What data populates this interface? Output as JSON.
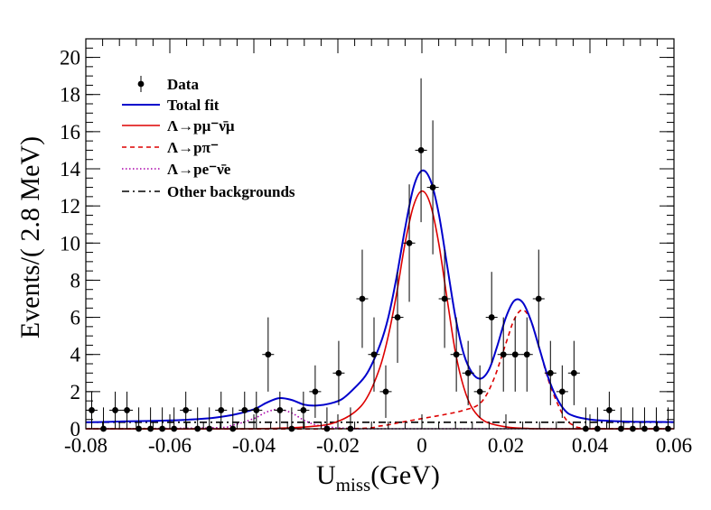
{
  "chart_data": {
    "type": "scatter",
    "title": "",
    "xlabel": "U",
    "xlabel_subscript": "miss",
    "xlabel_unit": "(GeV)",
    "ylabel": "Events/( 2.8 MeV)",
    "xlim": [
      -0.08,
      0.06
    ],
    "ylim": [
      0,
      21
    ],
    "grid": false,
    "legend_placement": "top-left",
    "x_ticks": [
      -0.08,
      -0.06,
      -0.04,
      -0.02,
      0,
      0.02,
      0.04,
      0.06
    ],
    "x_tick_labels": [
      "-0.08",
      "-0.06",
      "-0.04",
      "-0.02",
      "0",
      "0.02",
      "0.04",
      "0.06"
    ],
    "y_ticks": [
      0,
      2,
      4,
      6,
      8,
      10,
      12,
      14,
      16,
      18,
      20
    ],
    "y_tick_labels": [
      "0",
      "2",
      "4",
      "6",
      "8",
      "10",
      "12",
      "14",
      "16",
      "18",
      "20"
    ],
    "x_bin_width": 0.0028,
    "colors": {
      "data": "#000000",
      "total_fit": "#0000cc",
      "signal": "#dd0000",
      "ppi": "#dd0000",
      "pe": "#aa00aa",
      "other": "#000000"
    },
    "legend": [
      {
        "key": "data",
        "text": "Data"
      },
      {
        "key": "total",
        "text": "Total fit"
      },
      {
        "key": "signal",
        "text": "Λ→pμ⁻ν̄μ"
      },
      {
        "key": "ppi",
        "text": "Λ→pπ⁻"
      },
      {
        "key": "pe",
        "text": "Λ→pe⁻ν̄e"
      },
      {
        "key": "other",
        "text": "Other backgrounds"
      }
    ],
    "series": [
      {
        "name": "Data",
        "style": "points_with_errors",
        "x": [
          -0.0786,
          -0.0758,
          -0.073,
          -0.0702,
          -0.0674,
          -0.0646,
          -0.0618,
          -0.059,
          -0.0562,
          -0.0534,
          -0.0506,
          -0.0478,
          -0.045,
          -0.0422,
          -0.0394,
          -0.0366,
          -0.0338,
          -0.031,
          -0.0282,
          -0.0254,
          -0.0226,
          -0.0198,
          -0.017,
          -0.0142,
          -0.0114,
          -0.0086,
          -0.0058,
          -0.003,
          -0.0002,
          0.0026,
          0.0054,
          0.0082,
          0.011,
          0.0138,
          0.0166,
          0.0194,
          0.0222,
          0.025,
          0.0278,
          0.0306,
          0.0334,
          0.0362,
          0.039,
          0.0418,
          0.0446,
          0.0474,
          0.0502,
          0.053,
          0.0558,
          0.0586
        ],
        "y": [
          1,
          0,
          1,
          1,
          0,
          0,
          0,
          0,
          1,
          0,
          0,
          1,
          0,
          1,
          1,
          4,
          1,
          0,
          1,
          2,
          0,
          3,
          0,
          7,
          4,
          2,
          6,
          10,
          15,
          13,
          7,
          4,
          3,
          2,
          6,
          4,
          4,
          4,
          7,
          3,
          2,
          3,
          0,
          0,
          1,
          0,
          0,
          0,
          0,
          0
        ]
      },
      {
        "name": "Total fit",
        "style": "line",
        "x": [
          -0.08,
          -0.075,
          -0.07,
          -0.065,
          -0.06,
          -0.055,
          -0.05,
          -0.045,
          -0.04,
          -0.037,
          -0.034,
          -0.031,
          -0.028,
          -0.025,
          -0.022,
          -0.019,
          -0.016,
          -0.013,
          -0.01,
          -0.008,
          -0.006,
          -0.004,
          -0.002,
          0.0,
          0.002,
          0.004,
          0.006,
          0.008,
          0.01,
          0.012,
          0.014,
          0.016,
          0.018,
          0.02,
          0.022,
          0.024,
          0.026,
          0.028,
          0.03,
          0.032,
          0.034,
          0.036,
          0.04,
          0.045,
          0.05,
          0.055,
          0.06
        ],
        "y": [
          0.35,
          0.37,
          0.4,
          0.42,
          0.45,
          0.5,
          0.58,
          0.75,
          1.05,
          1.4,
          1.65,
          1.55,
          1.3,
          1.25,
          1.35,
          1.6,
          2.2,
          3.0,
          4.5,
          6.0,
          8.2,
          10.8,
          13.0,
          13.9,
          13.4,
          11.6,
          8.8,
          6.0,
          4.0,
          3.0,
          2.7,
          3.2,
          4.5,
          6.0,
          6.9,
          6.8,
          5.8,
          4.3,
          2.8,
          1.7,
          1.0,
          0.7,
          0.5,
          0.42,
          0.38,
          0.37,
          0.36
        ]
      },
      {
        "name": "Λ→pμ⁻ν̄μ",
        "style": "line",
        "x": [
          -0.08,
          -0.04,
          -0.025,
          -0.02,
          -0.016,
          -0.013,
          -0.01,
          -0.008,
          -0.006,
          -0.004,
          -0.002,
          0.0,
          0.002,
          0.004,
          0.006,
          0.008,
          0.01,
          0.012,
          0.015,
          0.02,
          0.025,
          0.03,
          0.06
        ],
        "y": [
          0.0,
          0.0,
          0.15,
          0.4,
          0.9,
          1.7,
          3.3,
          5.0,
          7.3,
          10.0,
          12.0,
          12.8,
          12.1,
          10.0,
          7.0,
          4.1,
          2.2,
          1.1,
          0.4,
          0.1,
          0.02,
          0.0,
          0.0
        ]
      },
      {
        "name": "Λ→pπ⁻",
        "style": "dashed",
        "x": [
          -0.08,
          -0.02,
          -0.01,
          -0.005,
          0.0,
          0.005,
          0.01,
          0.014,
          0.017,
          0.02,
          0.022,
          0.024,
          0.026,
          0.028,
          0.03,
          0.032,
          0.034,
          0.036,
          0.04,
          0.06
        ],
        "y": [
          0.0,
          0.0,
          0.15,
          0.35,
          0.55,
          0.75,
          1.0,
          1.4,
          2.6,
          4.6,
          5.9,
          6.4,
          5.8,
          4.3,
          2.7,
          1.5,
          0.6,
          0.2,
          0.02,
          0.0
        ]
      },
      {
        "name": "Λ→pe⁻ν̄e",
        "style": "dotted",
        "x": [
          -0.08,
          -0.05,
          -0.045,
          -0.04,
          -0.037,
          -0.034,
          -0.031,
          -0.028,
          -0.025,
          -0.02,
          -0.015,
          -0.01,
          0.06
        ],
        "y": [
          0.0,
          0.05,
          0.2,
          0.55,
          0.9,
          1.05,
          0.85,
          0.45,
          0.2,
          0.05,
          0.01,
          0.0,
          0.0
        ]
      },
      {
        "name": "Other backgrounds",
        "style": "dashdot",
        "x": [
          -0.08,
          0.06
        ],
        "y": [
          0.35,
          0.35
        ]
      }
    ]
  }
}
